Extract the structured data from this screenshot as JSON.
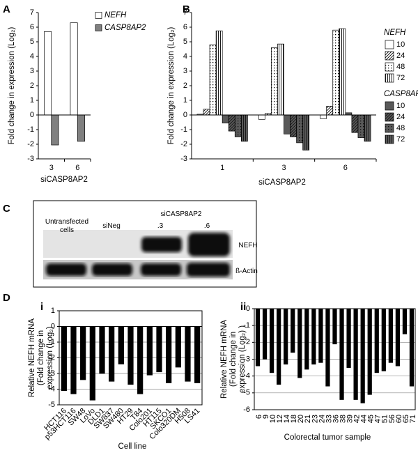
{
  "chart_data": [
    {
      "type": "bar",
      "panel_label": "A",
      "ylabel": "Fold change in expression (Log₂)",
      "xlabel": "siCASP8AP2",
      "categories": [
        "3",
        "6"
      ],
      "series": [
        {
          "name": "NEFH",
          "color": "#ffffff",
          "values": [
            5.7,
            6.3
          ]
        },
        {
          "name": "CASP8AP2",
          "color": "#808080",
          "values": [
            -2.05,
            -1.8
          ]
        }
      ],
      "ylim": [
        -3,
        7
      ],
      "yticks": [
        -3,
        -2,
        -1,
        0,
        1,
        2,
        3,
        4,
        5,
        6,
        7
      ],
      "grid": false,
      "legend": "right"
    },
    {
      "type": "bar",
      "panel_label": "B",
      "ylabel": "Fold change in expression (Log₂)",
      "xlabel": "siCASP8AP2",
      "categories": [
        "1",
        "3",
        "6"
      ],
      "series_groups": [
        {
          "name": "NEFH",
          "series": [
            {
              "name": "10",
              "color": "#ffffff",
              "pattern": "solid",
              "values": [
                0.05,
                -0.3,
                -0.25
              ]
            },
            {
              "name": "24",
              "color": "#ffffff",
              "pattern": "diagonal",
              "values": [
                0.4,
                0.1,
                0.6
              ]
            },
            {
              "name": "48",
              "color": "#ffffff",
              "pattern": "dots",
              "values": [
                4.8,
                4.6,
                5.8
              ]
            },
            {
              "name": "72",
              "color": "#ffffff",
              "pattern": "vertical",
              "values": [
                5.75,
                4.85,
                5.9
              ]
            }
          ]
        },
        {
          "name": "CASP8AP2",
          "series": [
            {
              "name": "10",
              "color": "#595959",
              "pattern": "solid",
              "values": [
                -0.55,
                -1.3,
                0.15
              ]
            },
            {
              "name": "24",
              "color": "#595959",
              "pattern": "diagonal",
              "values": [
                -1.1,
                -1.5,
                -1.2
              ]
            },
            {
              "name": "48",
              "color": "#595959",
              "pattern": "dots",
              "values": [
                -1.5,
                -1.9,
                -1.55
              ]
            },
            {
              "name": "72",
              "color": "#595959",
              "pattern": "vertical",
              "values": [
                -1.8,
                -2.4,
                -1.8
              ]
            }
          ]
        }
      ],
      "ylim": [
        -3,
        7
      ],
      "yticks": [
        -3,
        -2,
        -1,
        0,
        1,
        2,
        3,
        4,
        5,
        6,
        7
      ],
      "grid": false,
      "legend": "right"
    },
    {
      "type": "bar",
      "panel_label": "i",
      "ylabel": [
        "Relative NEFH mRNA",
        "(Fold change in",
        "expression (Log₂)"
      ],
      "xlabel": "Cell line",
      "categories": [
        "HCT116",
        "p53HCT116",
        "SW48",
        "LoVo",
        "DLD1",
        "SW837",
        "SW480",
        "HT29",
        "T84",
        "Colo201",
        "HT115",
        "SKCO1",
        "Colo320DM",
        "H508",
        "LS41"
      ],
      "values": [
        -4.1,
        -4.3,
        -3.4,
        -4.7,
        -3.0,
        -3.5,
        -2.4,
        -3.7,
        -4.3,
        -3.1,
        -2.9,
        -3.6,
        -2.6,
        -3.5,
        -3.6
      ],
      "color": "#000000",
      "ylim": [
        -5,
        1
      ],
      "yticks": [
        -5,
        -4,
        -3,
        -2,
        -1,
        0,
        1
      ],
      "grid": true,
      "xtick_rotation": 45
    },
    {
      "type": "bar",
      "panel_label": "ii",
      "ylabel": [
        "Relative NEFH mRNA",
        "(Fold change in",
        "expression (Log₂) )"
      ],
      "xlabel": "Colorectal tumor sample",
      "categories": [
        "6",
        "9",
        "10",
        "12",
        "14",
        "18",
        "20",
        "21",
        "23",
        "24",
        "33",
        "36",
        "38",
        "39",
        "42",
        "44",
        "45",
        "47",
        "51",
        "56",
        "60",
        "65",
        "71"
      ],
      "values": [
        -3.4,
        -3.0,
        -3.8,
        -4.5,
        -3.3,
        -2.6,
        -4.1,
        -3.6,
        -3.3,
        -3.2,
        -4.6,
        -2.1,
        -5.4,
        -3.5,
        -5.4,
        -5.6,
        -5.1,
        -3.8,
        -3.7,
        -3.2,
        -3.4,
        -1.5,
        -4.6
      ],
      "color": "#000000",
      "ylim": [
        -6,
        0
      ],
      "yticks": [
        -6,
        -5,
        -4,
        -3,
        -2,
        -1,
        0
      ],
      "grid": true,
      "xtick_rotation": 90
    }
  ],
  "panel_D_label": "D",
  "blot": {
    "panel_label": "C",
    "lanes": [
      "Untransfected cells",
      "siNeg",
      ".3",
      ".6"
    ],
    "group_label": "siCASP8AP2",
    "bands": [
      "NEFH",
      "ß-Actin"
    ]
  }
}
